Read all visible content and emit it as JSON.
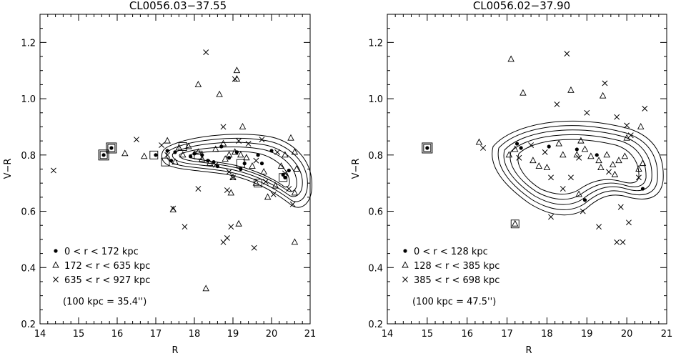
{
  "chart_data": [
    {
      "type": "scatter",
      "title": "CL0056.03−37.55",
      "xlabel": "R",
      "ylabel": "V−R",
      "xlim": [
        14,
        21
      ],
      "ylim": [
        0.2,
        1.3
      ],
      "xticks": [
        "14",
        "15",
        "16",
        "17",
        "18",
        "19",
        "20",
        "21"
      ],
      "yticks": [
        "0.2",
        "0.4",
        "0.6",
        "0.8",
        "1.0",
        "1.2"
      ],
      "legend": {
        "placement": "bottom-left",
        "entries": [
          {
            "marker": "dot",
            "label": "0 < r < 172 kpc"
          },
          {
            "marker": "triangle",
            "label": "172 < r < 635 kpc"
          },
          {
            "marker": "cross",
            "label": "635 < r < 927 kpc"
          }
        ],
        "note": "(100 kpc = 35.4'')"
      },
      "series": [
        {
          "marker": "dot",
          "points": [
            [
              15.65,
              0.8
            ],
            [
              15.85,
              0.825
            ],
            [
              17.0,
              0.8
            ],
            [
              17.3,
              0.815
            ],
            [
              17.5,
              0.81
            ],
            [
              17.4,
              0.78
            ],
            [
              17.9,
              0.795
            ],
            [
              18.0,
              0.805
            ],
            [
              18.2,
              0.8
            ],
            [
              18.35,
              0.78
            ],
            [
              18.5,
              0.775
            ],
            [
              18.6,
              0.76
            ],
            [
              18.7,
              0.83
            ],
            [
              18.9,
              0.79
            ],
            [
              19.1,
              0.81
            ],
            [
              19.2,
              0.75
            ],
            [
              19.3,
              0.77
            ],
            [
              19.65,
              0.8
            ],
            [
              19.75,
              0.77
            ],
            [
              20.0,
              0.815
            ],
            [
              20.3,
              0.73
            ],
            [
              20.35,
              0.72
            ],
            [
              20.45,
              0.745
            ]
          ]
        },
        {
          "marker": "triangle",
          "points": [
            [
              16.2,
              0.805
            ],
            [
              16.7,
              0.795
            ],
            [
              17.3,
              0.85
            ],
            [
              17.5,
              0.775
            ],
            [
              17.6,
              0.825
            ],
            [
              17.7,
              0.8
            ],
            [
              17.85,
              0.83
            ],
            [
              18.1,
              0.81
            ],
            [
              18.2,
              0.785
            ],
            [
              18.4,
              0.77
            ],
            [
              18.55,
              0.82
            ],
            [
              18.75,
              0.84
            ],
            [
              18.8,
              0.785
            ],
            [
              18.9,
              0.8
            ],
            [
              19.05,
              0.81
            ],
            [
              19.2,
              0.8
            ],
            [
              19.35,
              0.79
            ],
            [
              19.5,
              0.76
            ],
            [
              19.6,
              0.7
            ],
            [
              19.8,
              0.74
            ],
            [
              19.9,
              0.65
            ],
            [
              20.1,
              0.69
            ],
            [
              20.25,
              0.76
            ],
            [
              20.35,
              0.8
            ],
            [
              20.5,
              0.86
            ],
            [
              20.6,
              0.81
            ],
            [
              20.65,
              0.75
            ],
            [
              20.6,
              0.665
            ],
            [
              17.45,
              0.605
            ],
            [
              18.1,
              1.05
            ],
            [
              18.65,
              1.015
            ],
            [
              19.1,
              1.1
            ],
            [
              19.1,
              1.07
            ],
            [
              19.0,
              0.72
            ],
            [
              18.95,
              0.665
            ],
            [
              19.25,
              0.9
            ],
            [
              19.15,
              0.555
            ],
            [
              20.6,
              0.49
            ],
            [
              18.3,
              0.325
            ]
          ]
        },
        {
          "marker": "cross",
          "points": [
            [
              14.35,
              0.745
            ],
            [
              16.5,
              0.855
            ],
            [
              17.15,
              0.835
            ],
            [
              17.3,
              0.8
            ],
            [
              17.45,
              0.61
            ],
            [
              17.75,
              0.545
            ],
            [
              18.1,
              0.68
            ],
            [
              18.3,
              1.165
            ],
            [
              18.55,
              0.765
            ],
            [
              18.75,
              0.9
            ],
            [
              18.85,
              0.675
            ],
            [
              18.9,
              0.74
            ],
            [
              19.0,
              0.72
            ],
            [
              19.15,
              0.85
            ],
            [
              19.4,
              0.84
            ],
            [
              19.6,
              0.78
            ],
            [
              19.75,
              0.855
            ],
            [
              19.85,
              0.705
            ],
            [
              20.05,
              0.66
            ],
            [
              20.15,
              0.81
            ],
            [
              20.45,
              0.68
            ],
            [
              20.55,
              0.625
            ],
            [
              19.05,
              1.07
            ],
            [
              18.75,
              0.49
            ],
            [
              18.85,
              0.505
            ],
            [
              18.95,
              0.545
            ],
            [
              19.55,
              0.47
            ],
            [
              20.35,
              0.735
            ]
          ]
        },
        {
          "marker": "boxed-dot",
          "points": [
            [
              15.65,
              0.8
            ],
            [
              15.85,
              0.825
            ]
          ]
        },
        {
          "marker": "box",
          "points": [
            [
              16.95,
              0.8
            ],
            [
              17.25,
              0.775
            ],
            [
              17.7,
              0.83
            ],
            [
              18.1,
              0.8
            ],
            [
              19.2,
              0.77
            ],
            [
              19.65,
              0.7
            ],
            [
              20.3,
              0.72
            ]
          ]
        }
      ]
    },
    {
      "type": "scatter",
      "title": "CL0056.02−37.90",
      "xlabel": "R",
      "ylabel": "V−R",
      "xlim": [
        14,
        21
      ],
      "ylim": [
        0.2,
        1.3
      ],
      "xticks": [
        "14",
        "15",
        "16",
        "17",
        "18",
        "19",
        "20",
        "21"
      ],
      "yticks": [
        "0.2",
        "0.4",
        "0.6",
        "0.8",
        "1.0",
        "1.2"
      ],
      "legend": {
        "placement": "bottom-left",
        "entries": [
          {
            "marker": "dot",
            "label": "0 < r < 128 kpc"
          },
          {
            "marker": "triangle",
            "label": "128 < r < 385 kpc"
          },
          {
            "marker": "cross",
            "label": "385 < r < 698 kpc"
          }
        ],
        "note": "(100 kpc = 47.5'')"
      },
      "series": [
        {
          "marker": "dot",
          "points": [
            [
              15.0,
              0.825
            ],
            [
              17.25,
              0.84
            ],
            [
              17.35,
              0.825
            ],
            [
              18.05,
              0.83
            ],
            [
              18.75,
              0.82
            ],
            [
              19.25,
              0.8
            ],
            [
              18.95,
              0.64
            ],
            [
              20.4,
              0.68
            ]
          ]
        },
        {
          "marker": "triangle",
          "points": [
            [
              16.3,
              0.845
            ],
            [
              17.1,
              1.14
            ],
            [
              17.4,
              1.02
            ],
            [
              17.2,
              0.82
            ],
            [
              17.65,
              0.78
            ],
            [
              17.8,
              0.76
            ],
            [
              18.0,
              0.755
            ],
            [
              18.3,
              0.84
            ],
            [
              18.4,
              0.8
            ],
            [
              18.6,
              1.03
            ],
            [
              18.75,
              0.8
            ],
            [
              18.85,
              0.85
            ],
            [
              18.95,
              0.82
            ],
            [
              19.1,
              0.795
            ],
            [
              19.3,
              0.78
            ],
            [
              19.35,
              0.755
            ],
            [
              19.5,
              0.8
            ],
            [
              19.65,
              0.765
            ],
            [
              19.7,
              0.73
            ],
            [
              19.8,
              0.78
            ],
            [
              19.95,
              0.795
            ],
            [
              20.0,
              0.86
            ],
            [
              20.3,
              0.75
            ],
            [
              20.4,
              0.77
            ],
            [
              20.35,
              0.9
            ],
            [
              17.2,
              0.555
            ],
            [
              18.8,
              0.66
            ],
            [
              19.4,
              1.01
            ],
            [
              17.05,
              0.8
            ]
          ]
        },
        {
          "marker": "cross",
          "points": [
            [
              16.4,
              0.825
            ],
            [
              17.3,
              0.79
            ],
            [
              17.6,
              0.835
            ],
            [
              17.95,
              0.81
            ],
            [
              18.1,
              0.58
            ],
            [
              18.25,
              0.98
            ],
            [
              18.5,
              1.16
            ],
            [
              18.1,
              0.72
            ],
            [
              18.4,
              0.68
            ],
            [
              18.6,
              0.72
            ],
            [
              18.9,
              0.6
            ],
            [
              19.0,
              0.95
            ],
            [
              19.3,
              0.545
            ],
            [
              19.45,
              1.055
            ],
            [
              19.75,
              0.935
            ],
            [
              19.85,
              0.615
            ],
            [
              20.0,
              0.905
            ],
            [
              20.05,
              0.56
            ],
            [
              20.1,
              0.87
            ],
            [
              20.45,
              0.965
            ],
            [
              19.75,
              0.49
            ],
            [
              19.9,
              0.49
            ],
            [
              18.8,
              0.79
            ],
            [
              19.55,
              0.74
            ],
            [
              20.3,
              0.72
            ]
          ]
        },
        {
          "marker": "boxed-dot",
          "points": [
            [
              15.0,
              0.825
            ]
          ]
        },
        {
          "marker": "box",
          "points": [
            [
              17.2,
              0.555
            ]
          ]
        }
      ]
    }
  ]
}
